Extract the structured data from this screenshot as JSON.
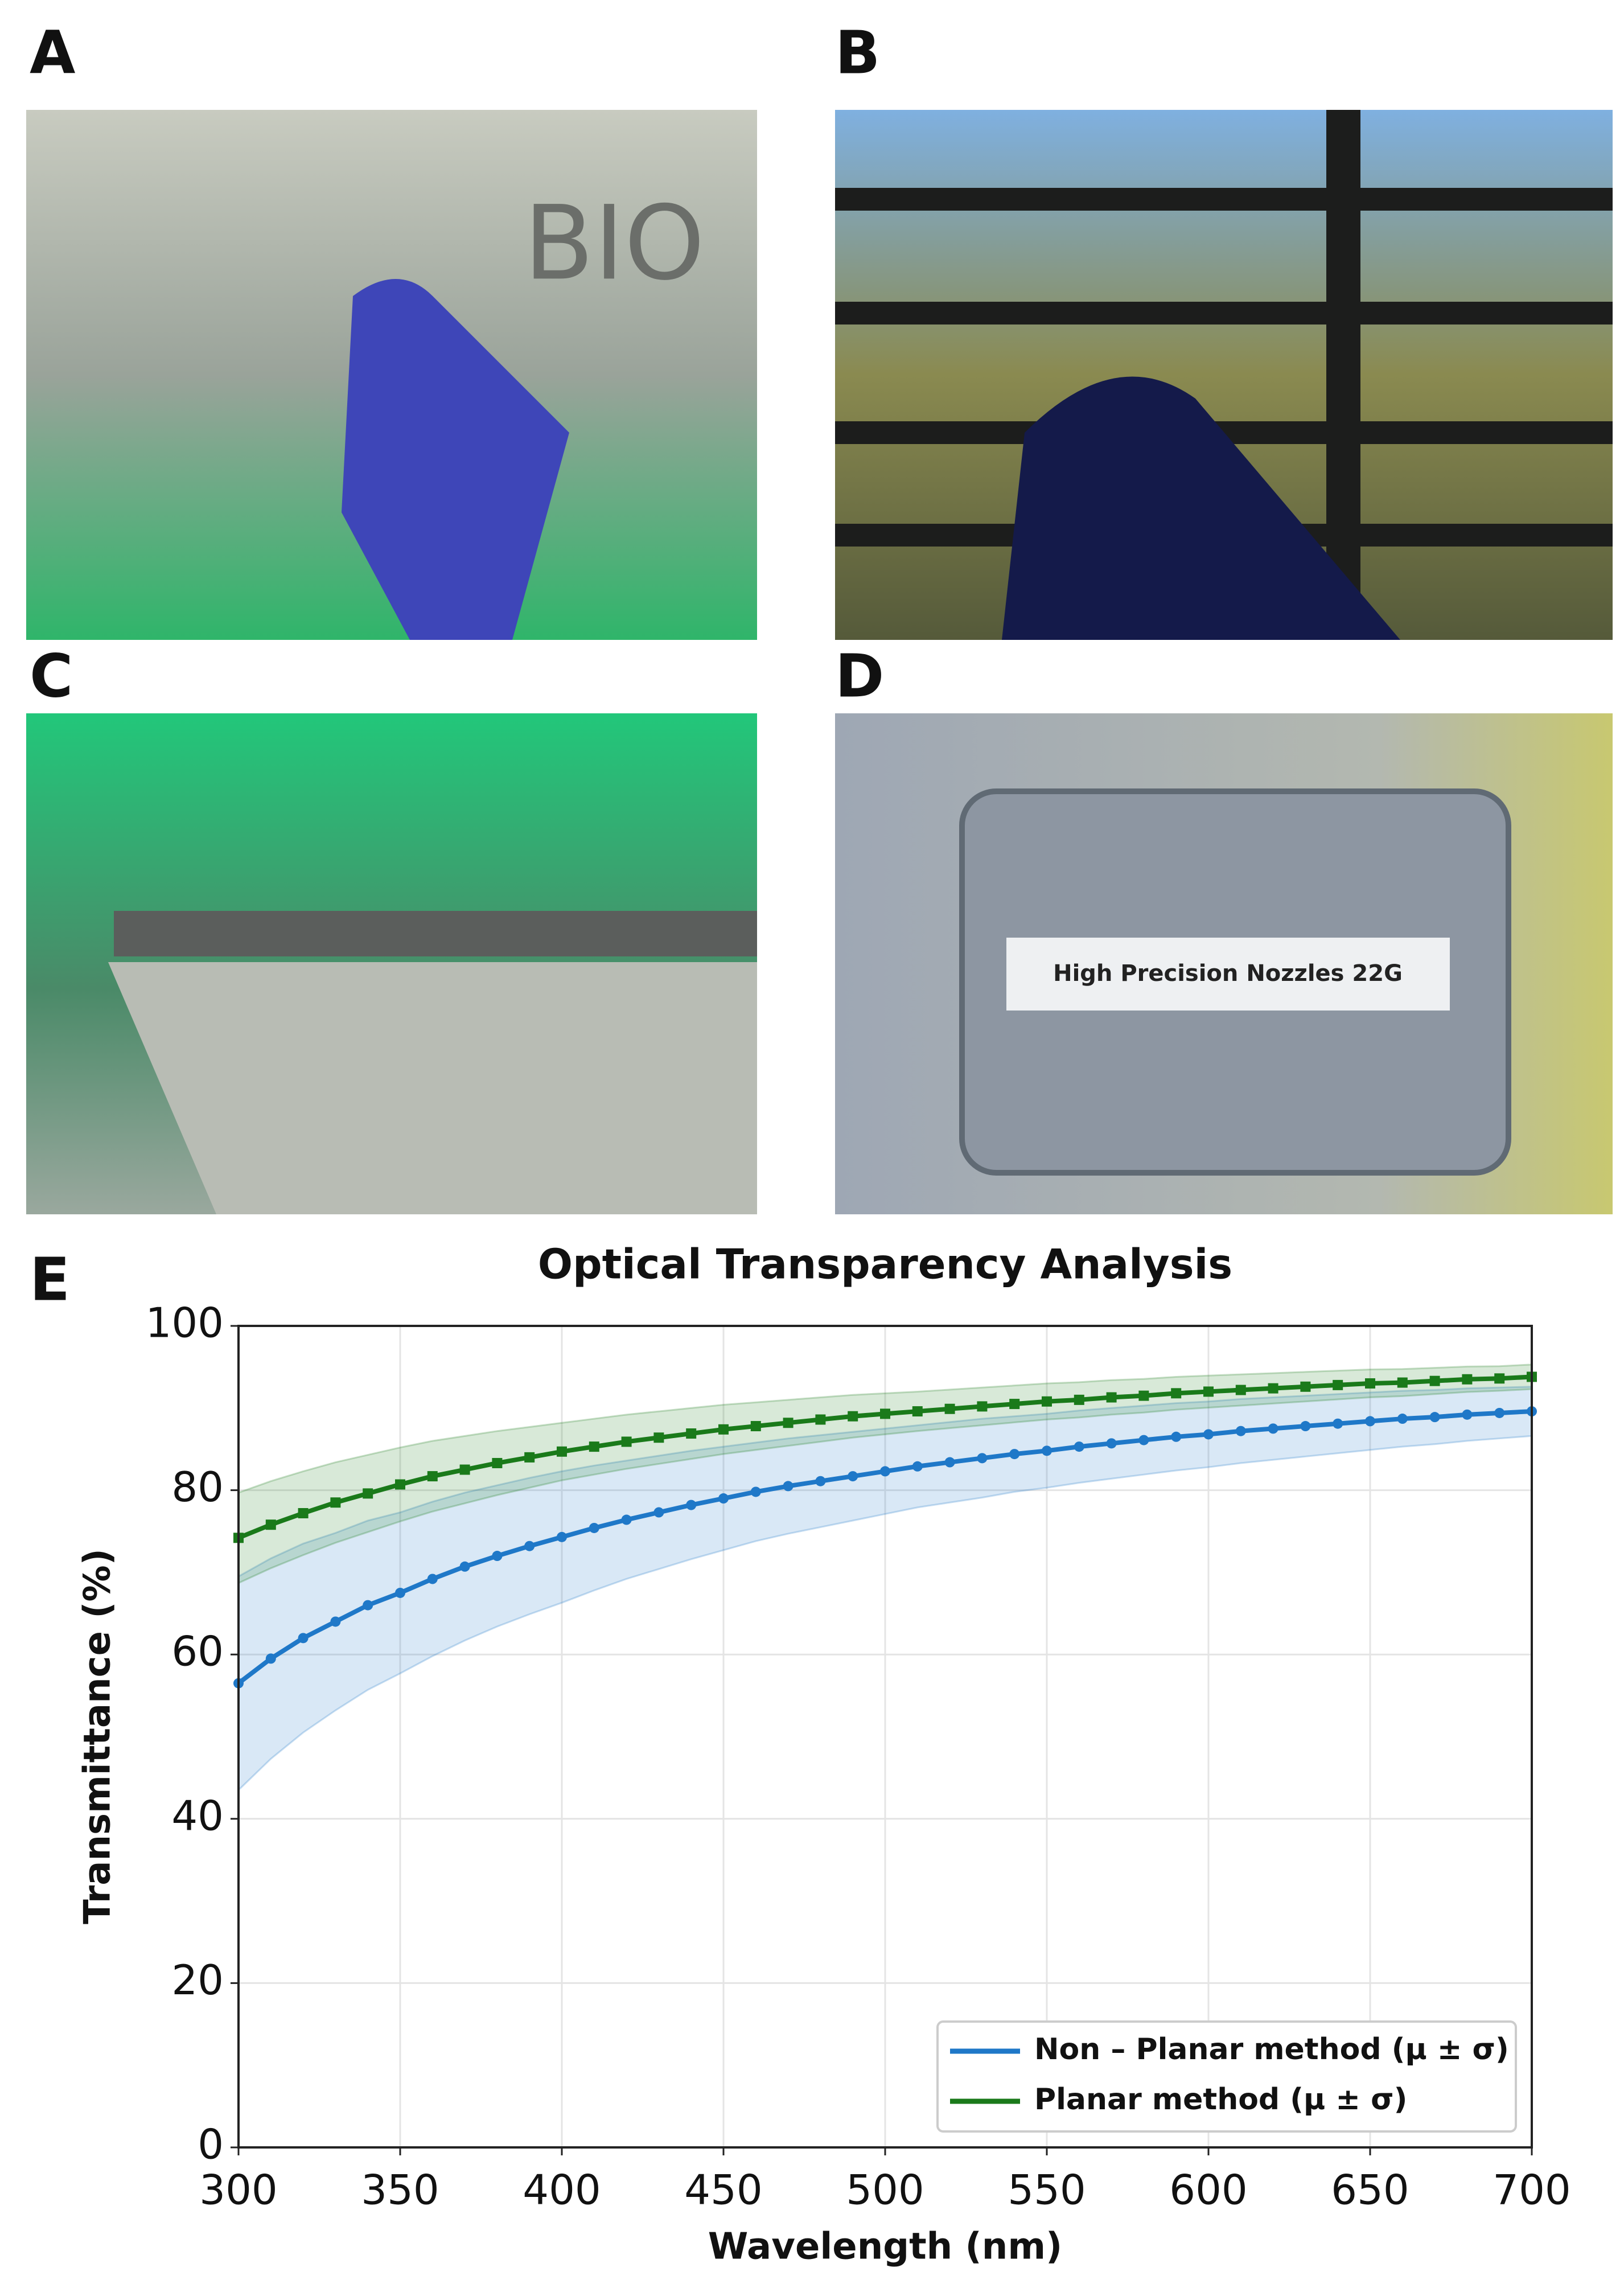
{
  "panels": [
    {
      "label": "A",
      "text": "BIO"
    },
    {
      "label": "B"
    },
    {
      "label": "C"
    },
    {
      "label": "D",
      "text": "High Precision Nozzles 22G"
    },
    {
      "label": "E"
    }
  ],
  "chart_data": {
    "type": "line",
    "title": "Optical Transparency Analysis",
    "x_label": "Wavelength (nm)",
    "y_label": "Transmittance (%)",
    "xlim": [
      300,
      700
    ],
    "ylim": [
      0,
      100
    ],
    "xticks": [
      300,
      350,
      400,
      450,
      500,
      550,
      600,
      650,
      700
    ],
    "yticks": [
      0,
      20,
      40,
      60,
      80,
      100
    ],
    "grid": true,
    "legend": "lower right",
    "x": [
      300,
      310,
      320,
      330,
      340,
      350,
      360,
      370,
      380,
      390,
      400,
      410,
      420,
      430,
      440,
      450,
      460,
      470,
      480,
      490,
      500,
      510,
      520,
      530,
      540,
      550,
      560,
      570,
      580,
      590,
      600,
      610,
      620,
      630,
      640,
      650,
      660,
      670,
      680,
      690,
      700
    ],
    "series": [
      {
        "name": "Non – Planar method (μ ± σ)",
        "color": "#1f78c8",
        "values": [
          56.5,
          59.5,
          62,
          64,
          66,
          67.5,
          69.2,
          70.7,
          72,
          73.2,
          74.3,
          75.4,
          76.4,
          77.3,
          78.2,
          79,
          79.8,
          80.5,
          81.1,
          81.7,
          82.3,
          82.9,
          83.4,
          83.9,
          84.4,
          84.8,
          85.3,
          85.7,
          86.1,
          86.5,
          86.8,
          87.2,
          87.5,
          87.8,
          88.1,
          88.4,
          88.7,
          88.9,
          89.2,
          89.4,
          89.6
        ],
        "errors": [
          13,
          12.2,
          11.5,
          10.8,
          10.3,
          9.8,
          9.4,
          9,
          8.6,
          8.3,
          8,
          7.6,
          7.2,
          6.9,
          6.6,
          6.3,
          6,
          5.8,
          5.6,
          5.4,
          5.2,
          5,
          4.9,
          4.8,
          4.6,
          4.5,
          4.4,
          4.3,
          4.2,
          4.1,
          4,
          3.9,
          3.8,
          3.7,
          3.6,
          3.5,
          3.4,
          3.3,
          3.2,
          3.1,
          3
        ]
      },
      {
        "name": "Planar method (μ ± σ)",
        "color": "#1a7a1a",
        "values": [
          74.2,
          75.8,
          77.2,
          78.5,
          79.6,
          80.7,
          81.7,
          82.5,
          83.3,
          84,
          84.7,
          85.3,
          85.9,
          86.4,
          86.9,
          87.4,
          87.8,
          88.2,
          88.6,
          89,
          89.3,
          89.6,
          89.9,
          90.2,
          90.5,
          90.8,
          91,
          91.3,
          91.5,
          91.8,
          92,
          92.2,
          92.4,
          92.6,
          92.8,
          93,
          93.1,
          93.3,
          93.5,
          93.6,
          93.8
        ],
        "errors": [
          5.5,
          5.3,
          5.1,
          4.9,
          4.7,
          4.5,
          4.3,
          4.1,
          3.9,
          3.7,
          3.5,
          3.4,
          3.3,
          3.2,
          3.1,
          3,
          2.9,
          2.8,
          2.7,
          2.6,
          2.5,
          2.4,
          2.35,
          2.3,
          2.25,
          2.2,
          2.15,
          2.1,
          2.05,
          2,
          1.95,
          1.9,
          1.85,
          1.8,
          1.75,
          1.7,
          1.65,
          1.6,
          1.55,
          1.5,
          1.5
        ]
      }
    ]
  }
}
